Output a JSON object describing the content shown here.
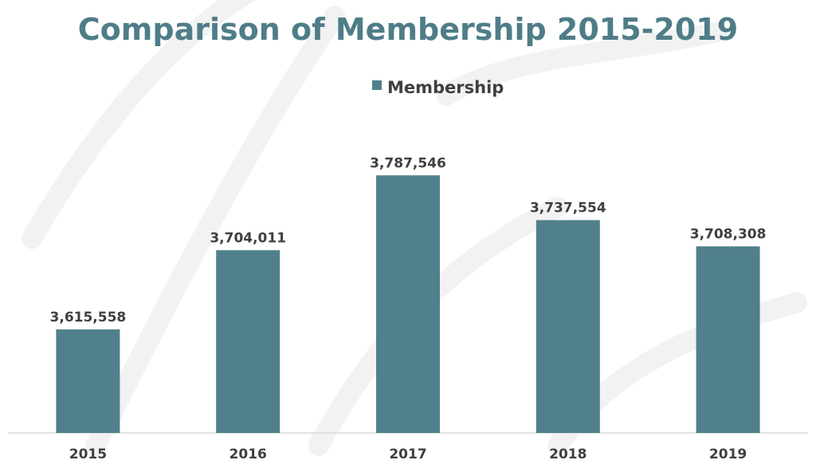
{
  "chart_data": {
    "type": "bar",
    "title": "Comparison of  Membership 2015-2019",
    "categories": [
      "2015",
      "2016",
      "2017",
      "2018",
      "2019"
    ],
    "series": [
      {
        "name": "Membership",
        "values": [
          3615558,
          3704011,
          3787546,
          3737554,
          3708308
        ],
        "labels": [
          "3,615,558",
          "3,704,011",
          "3,787,546",
          "3,737,554",
          "3,708,308"
        ]
      }
    ],
    "ylim": [
      3500000,
      3850000
    ],
    "grid": false,
    "legend": "top-center",
    "colors": {
      "bar": "#50808B",
      "title": "#4E7D88",
      "text": "#3F3F3F",
      "axis": "#D9D9D9"
    }
  }
}
